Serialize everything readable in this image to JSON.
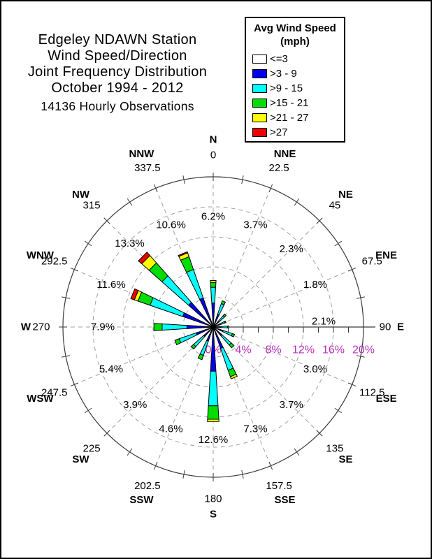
{
  "page": {
    "background": "#ffffff",
    "border_color": "#000000"
  },
  "title": {
    "lines": [
      "Edgeley NDAWN Station",
      "Wind Speed/Direction",
      "Joint Frequency Distribution",
      "October 1994 - 2012"
    ],
    "subtitle": "14136 Hourly Observations"
  },
  "legend": {
    "title_line1": "Avg Wind Speed",
    "title_line2": "(mph)",
    "items": [
      {
        "label": "<=3",
        "color": "#ffffff"
      },
      {
        "label": ">3 - 9",
        "color": "#0000ee"
      },
      {
        "label": ">9 - 15",
        "color": "#00ffff"
      },
      {
        "label": ">15 - 21",
        "color": "#00dd00"
      },
      {
        "label": ">21 - 27",
        "color": "#ffff00"
      },
      {
        "label": ">27",
        "color": "#ee0000"
      }
    ]
  },
  "chart_data": {
    "type": "wind-rose",
    "units": "percent frequency of hourly observations",
    "speed_bins": [
      "<=3",
      ">3 - 9",
      ">9 - 15",
      ">15 - 21",
      ">21 - 27",
      ">27"
    ],
    "bin_colors": [
      "#ffffff",
      "#0000ee",
      "#00ffff",
      "#00dd00",
      "#ffff00",
      "#ee0000"
    ],
    "radial_axis": {
      "labels": [
        "0%",
        "4%",
        "8%",
        "12%",
        "16%",
        "20%"
      ],
      "values": [
        0,
        4,
        8,
        12,
        16,
        20
      ],
      "max": 20,
      "ring_interval": 4,
      "label_color": "#bb30bb"
    },
    "grid": {
      "rings_dashed": [
        4,
        8,
        12,
        16
      ],
      "outer_ring": 20,
      "spoke_step_degrees": 22.5,
      "tick_step_degrees": 11.25
    },
    "directions": [
      {
        "name": "N",
        "degrees": "0",
        "angle": 0,
        "total_label": "6.2%",
        "total": 6.2,
        "segments": [
          0.1,
          3.1,
          2.1,
          0.65,
          0.25,
          0
        ]
      },
      {
        "name": "NNE",
        "degrees": "22.5",
        "angle": 22.5,
        "total_label": "3.7%",
        "total": 3.7,
        "segments": [
          0.1,
          1.7,
          1.5,
          0.4,
          0,
          0
        ]
      },
      {
        "name": "NE",
        "degrees": "45",
        "angle": 45,
        "total_label": "2.3%",
        "total": 2.3,
        "segments": [
          0.1,
          1.0,
          0.9,
          0.3,
          0,
          0
        ]
      },
      {
        "name": "ENE",
        "degrees": "67.5",
        "angle": 67.5,
        "total_label": "1.8%",
        "total": 1.8,
        "segments": [
          0.1,
          0.85,
          0.7,
          0.15,
          0,
          0
        ]
      },
      {
        "name": "E",
        "degrees": "90",
        "angle": 90,
        "total_label": "2.1%",
        "total": 2.1,
        "segments": [
          0.1,
          0.95,
          0.85,
          0.2,
          0,
          0
        ]
      },
      {
        "name": "ESE",
        "degrees": "112.5",
        "angle": 112.5,
        "total_label": "3.0%",
        "total": 3.0,
        "segments": [
          0.1,
          1.3,
          1.3,
          0.3,
          0,
          0
        ]
      },
      {
        "name": "SE",
        "degrees": "135",
        "angle": 135,
        "total_label": "3.7%",
        "total": 3.7,
        "segments": [
          0.1,
          1.4,
          1.7,
          0.5,
          0,
          0
        ]
      },
      {
        "name": "SSE",
        "degrees": "157.5",
        "angle": 157.5,
        "total_label": "7.3%",
        "total": 7.3,
        "segments": [
          0.1,
          2.9,
          3.1,
          0.9,
          0.3,
          0
        ]
      },
      {
        "name": "S",
        "degrees": "180",
        "angle": 180,
        "total_label": "12.6%",
        "total": 12.6,
        "segments": [
          0.1,
          5.8,
          4.6,
          1.8,
          0.3,
          0
        ]
      },
      {
        "name": "SSW",
        "degrees": "202.5",
        "angle": 202.5,
        "total_label": "4.6%",
        "total": 4.6,
        "segments": [
          0.1,
          1.9,
          2.0,
          0.6,
          0,
          0
        ]
      },
      {
        "name": "SW",
        "degrees": "225",
        "angle": 225,
        "total_label": "3.9%",
        "total": 3.9,
        "segments": [
          0.1,
          1.6,
          1.8,
          0.4,
          0,
          0
        ]
      },
      {
        "name": "WSW",
        "degrees": "247.5",
        "angle": 247.5,
        "total_label": "5.4%",
        "total": 5.4,
        "segments": [
          0.1,
          2.3,
          2.4,
          0.6,
          0,
          0
        ]
      },
      {
        "name": "W",
        "degrees": "270",
        "angle": 270,
        "total_label": "7.9%",
        "total": 7.9,
        "segments": [
          0.1,
          3.4,
          3.3,
          1.1,
          0,
          0
        ]
      },
      {
        "name": "WNW",
        "degrees": "292.5",
        "angle": 292.5,
        "total_label": "11.6%",
        "total": 11.6,
        "segments": [
          0.1,
          4.2,
          4.6,
          1.7,
          0.5,
          0.5
        ]
      },
      {
        "name": "NW",
        "degrees": "315",
        "angle": 315,
        "total_label": "13.3%",
        "total": 13.3,
        "segments": [
          0.1,
          4.3,
          4.7,
          2.3,
          1.3,
          0.6
        ]
      },
      {
        "name": "NNW",
        "degrees": "337.5",
        "angle": 337.5,
        "total_label": "10.6%",
        "total": 10.6,
        "segments": [
          0.1,
          4.0,
          4.0,
          1.8,
          0.55,
          0.15
        ]
      }
    ]
  }
}
